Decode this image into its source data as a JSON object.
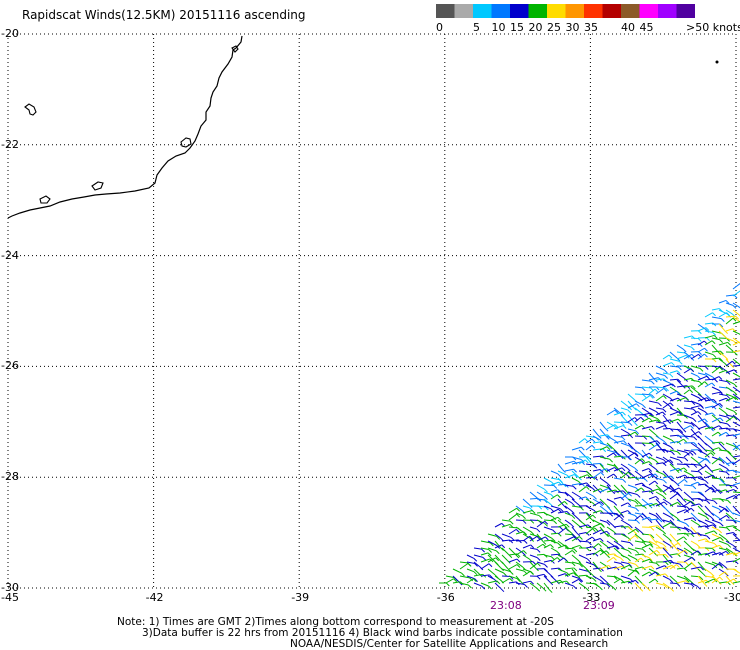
{
  "title": "Rapidscat Winds(12.5KM) 20151116 ascending",
  "legend": {
    "unit": ">50 knots",
    "bins": [
      {
        "color": "#555555",
        "label": "0"
      },
      {
        "color": "#aaaaaa",
        "label": ""
      },
      {
        "color": "#00c8ff",
        "label": "5"
      },
      {
        "color": "#0078ff",
        "label": "10"
      },
      {
        "color": "#0000cc",
        "label": "15"
      },
      {
        "color": "#00b400",
        "label": "20"
      },
      {
        "color": "#ffdc00",
        "label": "25"
      },
      {
        "color": "#ff9600",
        "label": "30"
      },
      {
        "color": "#ff3200",
        "label": "35"
      },
      {
        "color": "#b40000",
        "label": ""
      },
      {
        "color": "#8c5a28",
        "label": "40"
      },
      {
        "color": "#ff00ff",
        "label": "45"
      },
      {
        "color": "#a000ff",
        "label": ""
      },
      {
        "color": "#5000a0",
        "label": ""
      }
    ]
  },
  "map": {
    "lon_range": [
      -45,
      -30
    ],
    "lat_range": [
      -30,
      -20
    ],
    "lon_ticks": [
      -45,
      -42,
      -39,
      -36,
      -33,
      -30
    ],
    "lat_ticks": [
      -20,
      -22,
      -24,
      -26,
      -28,
      -30
    ],
    "lon_tick_labels": [
      "-45",
      "-42",
      "-39",
      "-36",
      "-33",
      "-30"
    ],
    "lat_tick_labels": [
      "-20",
      "-22",
      "-24",
      "-26",
      "-28",
      "-30"
    ]
  },
  "times": [
    "23:08",
    "23:09"
  ],
  "notes": [
    "Note: 1) Times are GMT 2)Times along bottom correspond to measurement at -20S",
    "3)Data buffer is 22 hrs from 20151116 4) Black wind barbs indicate possible contamination",
    "NOAA/NESDIS/Center for Satellite Applications and Research"
  ],
  "colors": {
    "gridline": "#000000",
    "coast": "#000000",
    "time_label": "#800080"
  }
}
